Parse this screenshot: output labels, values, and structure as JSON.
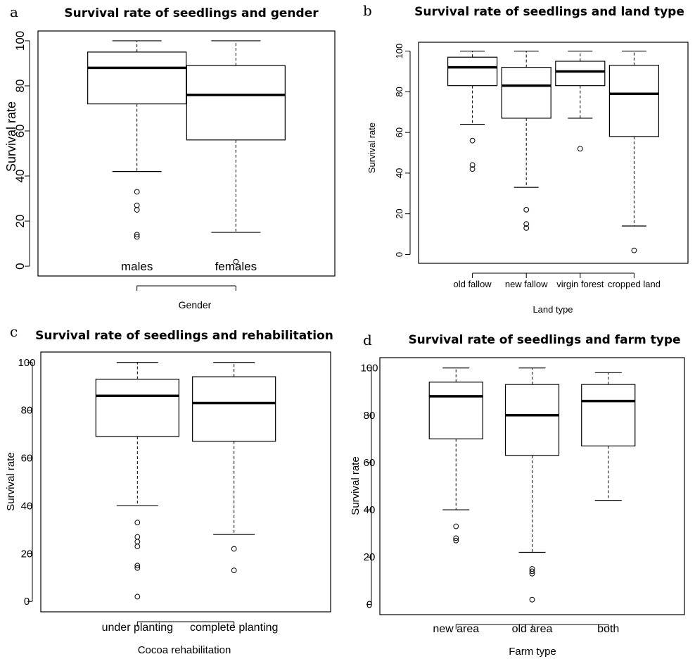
{
  "figure": {
    "panels": [
      "a",
      "b",
      "c",
      "d"
    ]
  },
  "chart_data": [
    {
      "panel": "a",
      "type": "boxplot",
      "title": "Survival rate of seedlings and gender",
      "xlabel": "Gender",
      "ylabel": "Survival rate",
      "ylim": [
        0,
        100
      ],
      "yticks": [
        0,
        20,
        40,
        60,
        80,
        100
      ],
      "grid": false,
      "categories": [
        "males",
        "females"
      ],
      "boxes": [
        {
          "name": "males",
          "whisker_low": 42,
          "q1": 72,
          "median": 88,
          "q3": 95,
          "whisker_high": 100,
          "outliers": [
            33,
            27,
            25,
            14,
            13
          ]
        },
        {
          "name": "females",
          "whisker_low": 15,
          "q1": 56,
          "median": 76,
          "q3": 89,
          "whisker_high": 100,
          "outliers": [
            2
          ]
        }
      ]
    },
    {
      "panel": "b",
      "type": "boxplot",
      "title": "Survival rate of seedlings and land type",
      "xlabel": "Land type",
      "ylabel": "Survival rate",
      "ylim": [
        0,
        100
      ],
      "yticks": [
        0,
        20,
        40,
        60,
        80,
        100
      ],
      "grid": false,
      "categories": [
        "old fallow",
        "new fallow",
        "virgin forest",
        "cropped land"
      ],
      "boxes": [
        {
          "name": "old fallow",
          "whisker_low": 64,
          "q1": 83,
          "median": 92,
          "q3": 97,
          "whisker_high": 100,
          "outliers": [
            56,
            44,
            42
          ]
        },
        {
          "name": "new fallow",
          "whisker_low": 33,
          "q1": 67,
          "median": 83,
          "q3": 92,
          "whisker_high": 100,
          "outliers": [
            22,
            15,
            13
          ]
        },
        {
          "name": "virgin forest",
          "whisker_low": 67,
          "q1": 83,
          "median": 90,
          "q3": 95,
          "whisker_high": 100,
          "outliers": [
            52
          ]
        },
        {
          "name": "cropped land",
          "whisker_low": 14,
          "q1": 58,
          "median": 79,
          "q3": 93,
          "whisker_high": 100,
          "outliers": [
            2
          ]
        }
      ]
    },
    {
      "panel": "c",
      "type": "boxplot",
      "title": "Survival rate of seedlings and rehabilitation",
      "xlabel": "Cocoa rehabilitation",
      "ylabel": "Survival rate",
      "ylim": [
        0,
        100
      ],
      "yticks": [
        0,
        20,
        40,
        60,
        80,
        100
      ],
      "grid": false,
      "categories": [
        "under planting",
        "complete planting"
      ],
      "boxes": [
        {
          "name": "under planting",
          "whisker_low": 40,
          "q1": 69,
          "median": 86,
          "q3": 93,
          "whisker_high": 100,
          "outliers": [
            33,
            27,
            25,
            23,
            15,
            14,
            2
          ]
        },
        {
          "name": "complete planting",
          "whisker_low": 28,
          "q1": 67,
          "median": 83,
          "q3": 94,
          "whisker_high": 100,
          "outliers": [
            22,
            13
          ]
        }
      ]
    },
    {
      "panel": "d",
      "type": "boxplot",
      "title": "Survival rate of seedlings and farm type",
      "xlabel": "Farm type",
      "ylabel": "Survival rate",
      "ylim": [
        0,
        100
      ],
      "yticks": [
        0,
        20,
        40,
        60,
        80,
        100
      ],
      "grid": false,
      "categories": [
        "new area",
        "old area",
        "both"
      ],
      "boxes": [
        {
          "name": "new area",
          "whisker_low": 40,
          "q1": 70,
          "median": 88,
          "q3": 94,
          "whisker_high": 100,
          "outliers": [
            33,
            28,
            27
          ]
        },
        {
          "name": "old area",
          "whisker_low": 22,
          "q1": 63,
          "median": 80,
          "q3": 93,
          "whisker_high": 100,
          "outliers": [
            15,
            14,
            13,
            2
          ]
        },
        {
          "name": "both",
          "whisker_low": 44,
          "q1": 67,
          "median": 86,
          "q3": 93,
          "whisker_high": 98,
          "outliers": []
        }
      ]
    }
  ]
}
